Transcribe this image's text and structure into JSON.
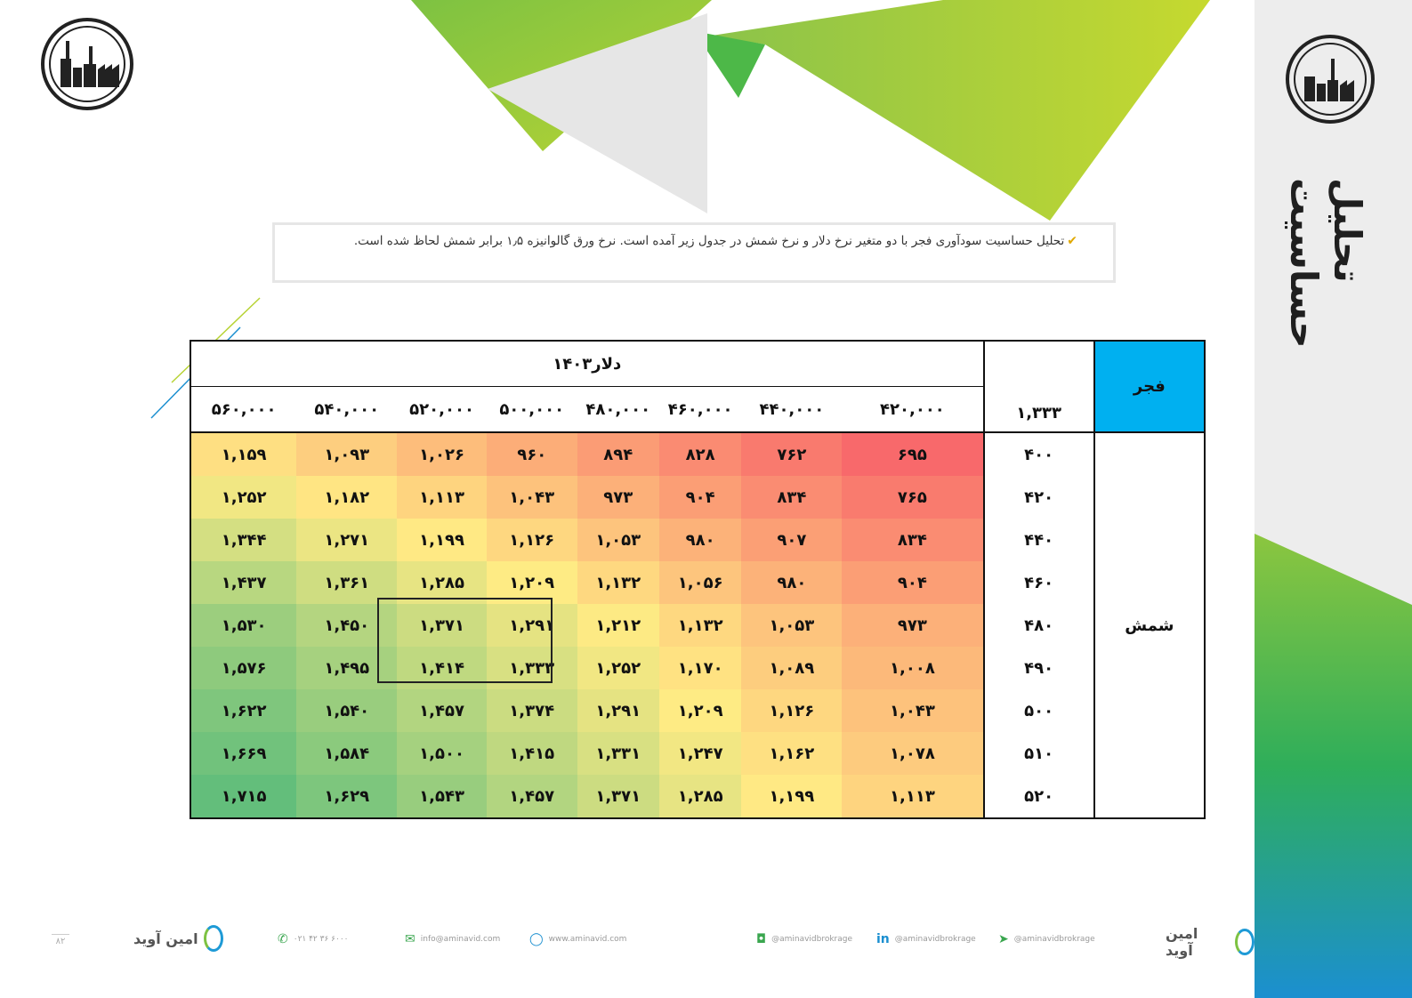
{
  "colors": {
    "header_blue": "#00b0f0",
    "green_shape": "#8cc63f",
    "low_red": "#f8696b",
    "mid_yellow": "#ffeb84",
    "high_green": "#63be7b"
  },
  "sidebar": {
    "title": "تحلیل حساسیت"
  },
  "note": {
    "text": "تحلیل حساسیت سودآوری فجر با دو متغیر نرخ دلار و نرخ شمش در جدول زیر آمده است. نرخ ورق گالوانیزه ۱٫۵ برابر شمش لحاظ شده است."
  },
  "table": {
    "company": "فجر",
    "base_value": "۱,۳۳۳",
    "dollar_header": "دلار۱۴۰۳",
    "row_variable": "شمش",
    "dollar_values": [
      "۴۲۰,۰۰۰",
      "۴۴۰,۰۰۰",
      "۴۶۰,۰۰۰",
      "۴۸۰,۰۰۰",
      "۵۰۰,۰۰۰",
      "۵۲۰,۰۰۰",
      "۵۴۰,۰۰۰",
      "۵۶۰,۰۰۰"
    ],
    "rows": [
      {
        "label": "۴۰۰",
        "values": [
          "۶۹۵",
          "۷۶۲",
          "۸۲۸",
          "۸۹۴",
          "۹۶۰",
          "۱,۰۲۶",
          "۱,۰۹۳",
          "۱,۱۵۹"
        ],
        "raw": [
          695,
          762,
          828,
          894,
          960,
          1026,
          1093,
          1159
        ]
      },
      {
        "label": "۴۲۰",
        "values": [
          "۷۶۵",
          "۸۳۴",
          "۹۰۴",
          "۹۷۳",
          "۱,۰۴۳",
          "۱,۱۱۳",
          "۱,۱۸۲",
          "۱,۲۵۲"
        ],
        "raw": [
          765,
          834,
          904,
          973,
          1043,
          1113,
          1182,
          1252
        ]
      },
      {
        "label": "۴۴۰",
        "values": [
          "۸۳۴",
          "۹۰۷",
          "۹۸۰",
          "۱,۰۵۳",
          "۱,۱۲۶",
          "۱,۱۹۹",
          "۱,۲۷۱",
          "۱,۳۴۴"
        ],
        "raw": [
          834,
          907,
          980,
          1053,
          1126,
          1199,
          1271,
          1344
        ]
      },
      {
        "label": "۴۶۰",
        "values": [
          "۹۰۴",
          "۹۸۰",
          "۱,۰۵۶",
          "۱,۱۳۲",
          "۱,۲۰۹",
          "۱,۲۸۵",
          "۱,۳۶۱",
          "۱,۴۳۷"
        ],
        "raw": [
          904,
          980,
          1056,
          1132,
          1209,
          1285,
          1361,
          1437
        ]
      },
      {
        "label": "۴۸۰",
        "values": [
          "۹۷۳",
          "۱,۰۵۳",
          "۱,۱۳۲",
          "۱,۲۱۲",
          "۱,۲۹۱",
          "۱,۳۷۱",
          "۱,۴۵۰",
          "۱,۵۳۰"
        ],
        "raw": [
          973,
          1053,
          1132,
          1212,
          1291,
          1371,
          1450,
          1530
        ]
      },
      {
        "label": "۴۹۰",
        "values": [
          "۱,۰۰۸",
          "۱,۰۸۹",
          "۱,۱۷۰",
          "۱,۲۵۲",
          "۱,۳۳۳",
          "۱,۴۱۴",
          "۱,۴۹۵",
          "۱,۵۷۶"
        ],
        "raw": [
          1008,
          1089,
          1170,
          1252,
          1333,
          1414,
          1495,
          1576
        ]
      },
      {
        "label": "۵۰۰",
        "values": [
          "۱,۰۴۳",
          "۱,۱۲۶",
          "۱,۲۰۹",
          "۱,۲۹۱",
          "۱,۳۷۴",
          "۱,۴۵۷",
          "۱,۵۴۰",
          "۱,۶۲۲"
        ],
        "raw": [
          1043,
          1126,
          1209,
          1291,
          1374,
          1457,
          1540,
          1622
        ]
      },
      {
        "label": "۵۱۰",
        "values": [
          "۱,۰۷۸",
          "۱,۱۶۲",
          "۱,۲۴۷",
          "۱,۳۳۱",
          "۱,۴۱۵",
          "۱,۵۰۰",
          "۱,۵۸۴",
          "۱,۶۶۹"
        ],
        "raw": [
          1078,
          1162,
          1247,
          1331,
          1415,
          1500,
          1584,
          1669
        ]
      },
      {
        "label": "۵۲۰",
        "values": [
          "۱,۱۱۳",
          "۱,۱۹۹",
          "۱,۲۸۵",
          "۱,۳۷۱",
          "۱,۴۵۷",
          "۱,۵۴۳",
          "۱,۶۲۹",
          "۱,۷۱۵"
        ],
        "raw": [
          1113,
          1199,
          1285,
          1371,
          1457,
          1543,
          1629,
          1715
        ]
      }
    ]
  },
  "footer": {
    "brand": "امین آوید",
    "page_number": "۸۲",
    "phone": "۰۲۱ ۴۲ ۳۶ ۶۰۰۰",
    "email": "info@aminavid.com",
    "website": "www.aminavid.com",
    "instagram": "@aminavidbrokrage",
    "linkedin": "@aminavidbrokrage",
    "telegram": "@aminavidbrokrage",
    "phone_icon": "phone-icon",
    "email_icon": "envelope-icon",
    "website_icon": "mouse-icon",
    "instagram_icon": "instagram-icon",
    "linkedin_icon": "linkedin-icon",
    "telegram_icon": "telegram-icon"
  }
}
